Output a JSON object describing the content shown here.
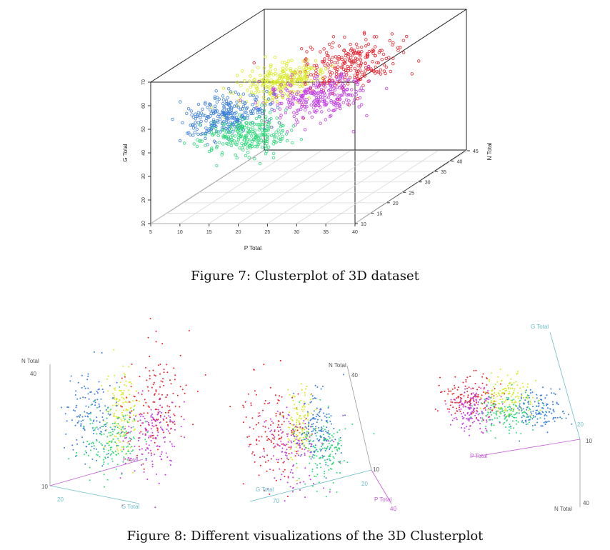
{
  "colors": {
    "red": "#e8232d",
    "yellow": "#d7ea22",
    "magenta": "#c23ae6",
    "blue": "#3b7fd9",
    "green": "#2fd97a",
    "axis": "#8a8a8a",
    "teal": "#6bbcc9",
    "violet": "#c45ad7"
  },
  "figure7": {
    "caption": "Figure 7: Clusterplot of 3D dataset",
    "xlabel": "P Total",
    "ylabel": "G Total",
    "zlabel": "N Total",
    "xticks": [
      "5",
      "10",
      "15",
      "20",
      "25",
      "30",
      "35",
      "40"
    ],
    "yticks": [
      "10",
      "20",
      "30",
      "40",
      "50",
      "60",
      "70"
    ],
    "zticks": [
      "10",
      "15",
      "20",
      "25",
      "30",
      "35",
      "40",
      "45"
    ]
  },
  "figure8": {
    "caption": "Figure 8: Different visualizations of the 3D Clusterplot",
    "panel1": {
      "n_label": "N Total",
      "n_max": "40",
      "n_min": "10",
      "g_min": "20",
      "g_label": "G Total",
      "p_label": "P Total"
    },
    "panel2": {
      "n_label": "N Total",
      "n_max": "40",
      "n_min": "10",
      "g_label": "G Total",
      "g_max": "70",
      "p_label": "P Total",
      "p_max": "40",
      "tick_20": "20"
    },
    "panel3": {
      "g_label": "G Total",
      "p_label": "P Total",
      "n_label": "N Total",
      "n_10": "10",
      "n_40": "40",
      "g_20": "20"
    }
  },
  "chart_data": [
    {
      "type": "scatter",
      "title": "",
      "xlabel": "P Total",
      "ylabel": "N Total",
      "zlabel": "G Total",
      "xlim": [
        5,
        40
      ],
      "ylim": [
        10,
        45
      ],
      "zlim": [
        10,
        70
      ],
      "grid": true,
      "series": [
        {
          "color": "red",
          "center": [
            28,
            30,
            60
          ],
          "spread": [
            6,
            8,
            8
          ]
        },
        {
          "color": "yellow",
          "center": [
            19,
            25,
            57
          ],
          "spread": [
            5,
            6,
            5
          ]
        },
        {
          "color": "magenta",
          "center": [
            27,
            22,
            53
          ],
          "spread": [
            6,
            6,
            6
          ]
        },
        {
          "color": "blue",
          "center": [
            12,
            20,
            46
          ],
          "spread": [
            5,
            5,
            6
          ]
        },
        {
          "color": "green",
          "center": [
            19,
            15,
            43
          ],
          "spread": [
            6,
            5,
            6
          ]
        }
      ]
    }
  ]
}
